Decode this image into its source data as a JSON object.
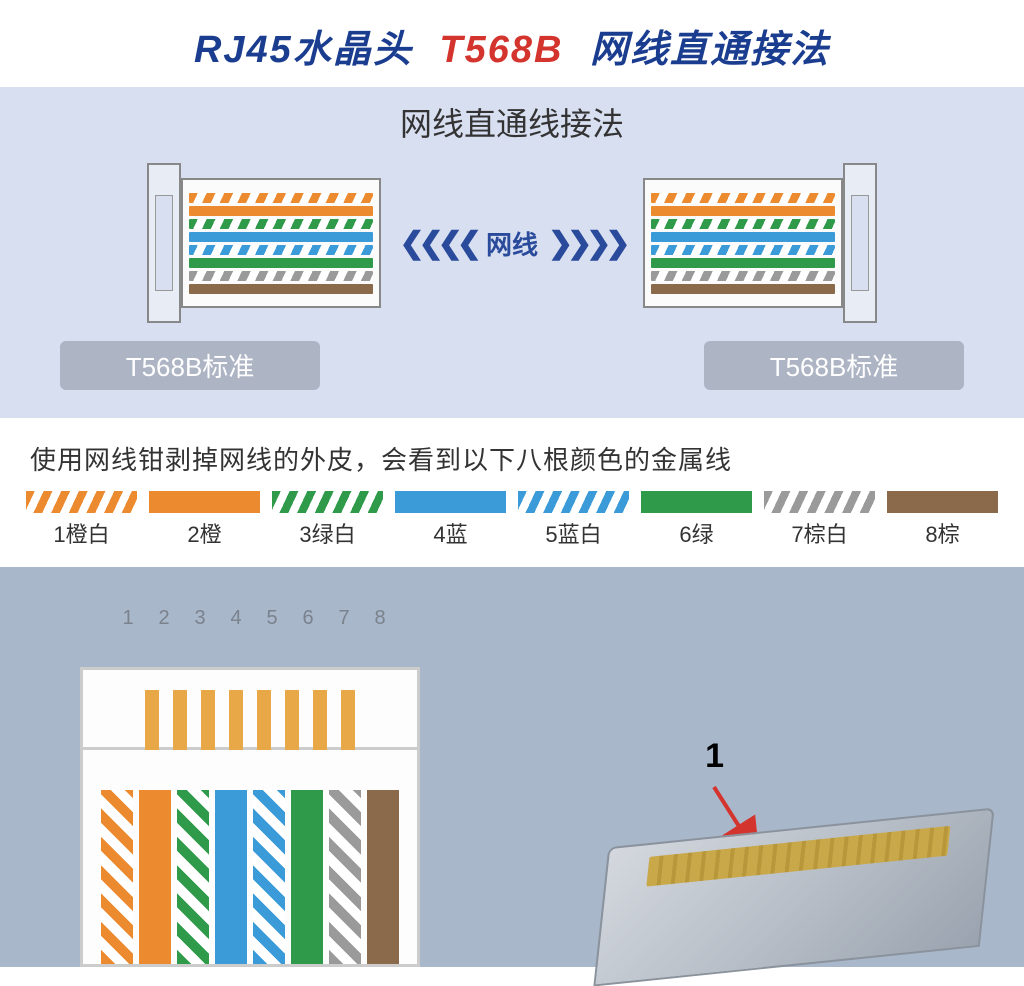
{
  "title": {
    "p1": "RJ45水晶头",
    "p2": "T568B",
    "p3": "网线直通接法"
  },
  "subtitle": "网线直通线接法",
  "cable_label": "网线",
  "standard_caption": "T568B标准",
  "description": "使用网线钳剥掉网线的外皮，会看到以下八根颜色的金属线",
  "colors": {
    "orange": "#ec8a2f",
    "blue": "#3a9bd8",
    "green": "#2f9b4a",
    "brown": "#8a6a4a",
    "grey": "#9a9a9a",
    "title_blue": "#1a3d8f",
    "title_red": "#d4342e",
    "panel1_bg": "#d8dff1",
    "panel2_bg": "#a9b7cb",
    "caption_bg": "#adb4c4"
  },
  "t568b_wires": [
    {
      "type": "striped",
      "color": "#ec8a2f",
      "name": "orange-white"
    },
    {
      "type": "solid",
      "color": "#ec8a2f",
      "name": "orange"
    },
    {
      "type": "striped",
      "color": "#2f9b4a",
      "name": "green-white"
    },
    {
      "type": "solid",
      "color": "#3a9bd8",
      "name": "blue"
    },
    {
      "type": "striped",
      "color": "#3a9bd8",
      "name": "blue-white"
    },
    {
      "type": "solid",
      "color": "#2f9b4a",
      "name": "green"
    },
    {
      "type": "striped",
      "color": "#9a9a9a",
      "name": "brown-white"
    },
    {
      "type": "solid",
      "color": "#8a6a4a",
      "name": "brown"
    }
  ],
  "swatches": [
    {
      "num": "1",
      "label": "橙白",
      "type": "striped",
      "color": "#ec8a2f"
    },
    {
      "num": "2",
      "label": "橙",
      "type": "solid",
      "color": "#ec8a2f"
    },
    {
      "num": "3",
      "label": "绿白",
      "type": "striped",
      "color": "#2f9b4a"
    },
    {
      "num": "4",
      "label": "蓝",
      "type": "solid",
      "color": "#3a9bd8"
    },
    {
      "num": "5",
      "label": "蓝白",
      "type": "striped",
      "color": "#3a9bd8"
    },
    {
      "num": "6",
      "label": "绿",
      "type": "solid",
      "color": "#2f9b4a"
    },
    {
      "num": "7",
      "label": "棕白",
      "type": "striped",
      "color": "#9a9a9a"
    },
    {
      "num": "8",
      "label": "棕",
      "type": "solid",
      "color": "#8a6a4a"
    }
  ],
  "pin_numbers": [
    "1",
    "2",
    "3",
    "4",
    "5",
    "6",
    "7",
    "8"
  ],
  "pointer_label": "1",
  "arrow_color": "#d4342e"
}
